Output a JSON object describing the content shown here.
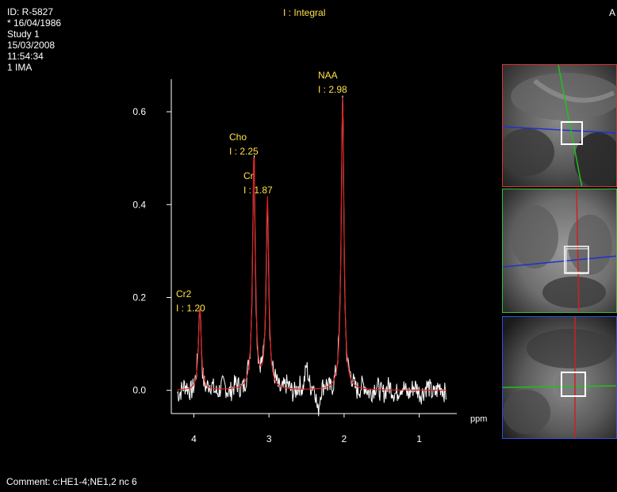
{
  "header": {
    "patient_id": "ID: R-5827",
    "birth_date": "* 16/04/1986",
    "study": "Study 1",
    "date": "15/03/2008",
    "time": "11:54:34",
    "image": "1 IMA",
    "legend_top": "I : Integral",
    "corner_label": "A"
  },
  "footer": {
    "comment": "Comment: c:HE1-4;NE1,2  nc  6"
  },
  "colors": {
    "spectrum": "#ffffff",
    "fit": "#e02020",
    "label": "#ffe24a",
    "axis": "#ffffff"
  },
  "chart_data": {
    "type": "line",
    "title": "",
    "xlabel": "ppm",
    "ylabel": "",
    "x_reversed": true,
    "xlim": [
      4.3,
      0.5
    ],
    "ylim": [
      -0.05,
      0.67
    ],
    "x_ticks": [
      4,
      3,
      2,
      1
    ],
    "y_ticks": [
      0.0,
      0.2,
      0.4,
      0.6
    ],
    "x_tick_labels": [
      "4",
      "3",
      "2",
      "1"
    ],
    "y_tick_labels": [
      "0.0",
      "0.2",
      "0.4",
      "0.6"
    ],
    "peaks": [
      {
        "name": "Cr2",
        "ppm": 3.92,
        "height": 0.18,
        "integral_label": "I : 1.20"
      },
      {
        "name": "Cho",
        "ppm": 3.2,
        "height": 0.51,
        "integral_label": "I : 2.25"
      },
      {
        "name": "Cr",
        "ppm": 3.02,
        "height": 0.41,
        "integral_label": "I : 1.87"
      },
      {
        "name": "NAA",
        "ppm": 2.02,
        "height": 0.63,
        "integral_label": "I : 2.98"
      }
    ],
    "series": [
      {
        "role": "measured spectrum",
        "color": "#ffffff"
      },
      {
        "role": "fitted spectrum",
        "color": "#e02020"
      }
    ]
  },
  "thumbnails": [
    {
      "role": "sagittal localizer",
      "border": "#e03030"
    },
    {
      "role": "coronal localizer",
      "border": "#30c030"
    },
    {
      "role": "axial localizer",
      "border": "#3050e0"
    }
  ]
}
